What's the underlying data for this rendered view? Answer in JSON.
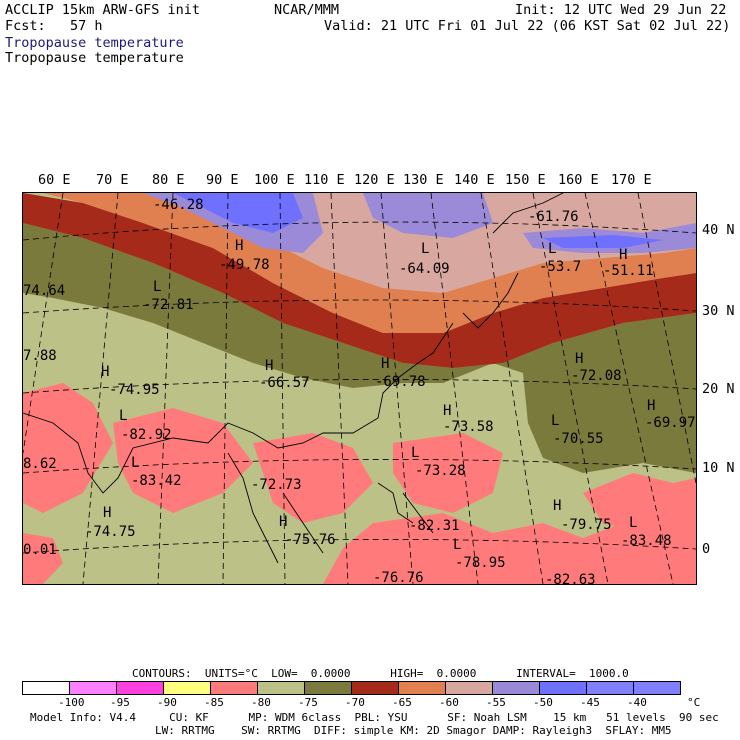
{
  "header": {
    "model": "ACCLIP 15km ARW-GFS init",
    "fcst": "Fcst:   57 h",
    "center": "NCAR/MMM",
    "init": "Init: 12 UTC Wed 29 Jun 22",
    "valid": "Valid: 21 UTC Fri 01 Jul 22 (06 KST Sat 02 Jul 22)",
    "field1": "Tropopause temperature",
    "field2": "Tropopause temperature"
  },
  "axes": {
    "lon_labels": [
      "60 E",
      "70 E",
      "80 E",
      "90 E",
      "100 E",
      "110 E",
      "120 E",
      "130 E",
      "140 E",
      "150 E",
      "160 E",
      "170 E"
    ],
    "lat_labels": [
      "40 N",
      "30 N",
      "20 N",
      "10 N",
      "0"
    ]
  },
  "map": {
    "variable": "Tropopause temperature",
    "units": "°C",
    "region": "Asia / Western Pacific",
    "palette": {
      "lt_minus100": "#ffffff",
      "m100_m95": "#ff80ff",
      "m95_m90": "#ff40e0",
      "m90_m85": "#ffff80",
      "m85_m80": "#ff7b7b",
      "m80_m75": "#bcc187",
      "m75_m70": "#7a7a3c",
      "m70_m65": "#a52a1a",
      "m65_m60": "#e08050",
      "m60_m55": "#d8a8a0",
      "m55_m50": "#9a8ad8",
      "m50_m45": "#7070ff",
      "m45_m40": "#8080ff"
    },
    "extrema": [
      {
        "type": "",
        "value": "-46.28"
      },
      {
        "type": "",
        "value": "-61.76"
      },
      {
        "type": "H",
        "value": "-49.78"
      },
      {
        "type": "L",
        "value": "-64.09"
      },
      {
        "type": "L",
        "value": "-53.7"
      },
      {
        "type": "H",
        "value": "-51.11"
      },
      {
        "type": "",
        "value": "74.64"
      },
      {
        "type": "L",
        "value": "-72.81"
      },
      {
        "type": "",
        "value": "7.88"
      },
      {
        "type": "H",
        "value": "-74.95"
      },
      {
        "type": "H",
        "value": "-66.57"
      },
      {
        "type": "H",
        "value": "-69.78"
      },
      {
        "type": "H",
        "value": "-72.08"
      },
      {
        "type": "L",
        "value": "-82.92"
      },
      {
        "type": "H",
        "value": "-73.58"
      },
      {
        "type": "L",
        "value": "-70.55"
      },
      {
        "type": "H",
        "value": "-69.97"
      },
      {
        "type": "",
        "value": "8.62"
      },
      {
        "type": "L",
        "value": "-83.42"
      },
      {
        "type": "",
        "value": "-72.73"
      },
      {
        "type": "L",
        "value": "-73.28"
      },
      {
        "type": "H",
        "value": "-74.75"
      },
      {
        "type": "H",
        "value": "-75.76"
      },
      {
        "type": "",
        "value": "-82.31"
      },
      {
        "type": "H",
        "value": "-79.75"
      },
      {
        "type": "L",
        "value": "-83.48"
      },
      {
        "type": "",
        "value": "0.01"
      },
      {
        "type": "L",
        "value": "-78.95"
      },
      {
        "type": "",
        "value": "-76.76"
      },
      {
        "type": "",
        "value": "-82.63"
      }
    ]
  },
  "footer": {
    "contours": "CONTOURS:  UNITS=°C  LOW=  0.0000      HIGH=  0.0000      INTERVAL=  1000.0",
    "scale_ticks": [
      "-100",
      "-95",
      "-90",
      "-85",
      "-80",
      "-75",
      "-70",
      "-65",
      "-60",
      "-55",
      "-50",
      "-45",
      "-40",
      "°C"
    ],
    "info1": "Model Info: V4.4     CU: KF      MP: WDM 6class  PBL: YSU      SF: Noah LSM    15 km   51 levels  90 sec",
    "info2": "LW: RRTMG    SW: RRTMG  DIFF: simple KM: 2D Smagor DAMP: Rayleigh3  SFLAY: MM5"
  }
}
